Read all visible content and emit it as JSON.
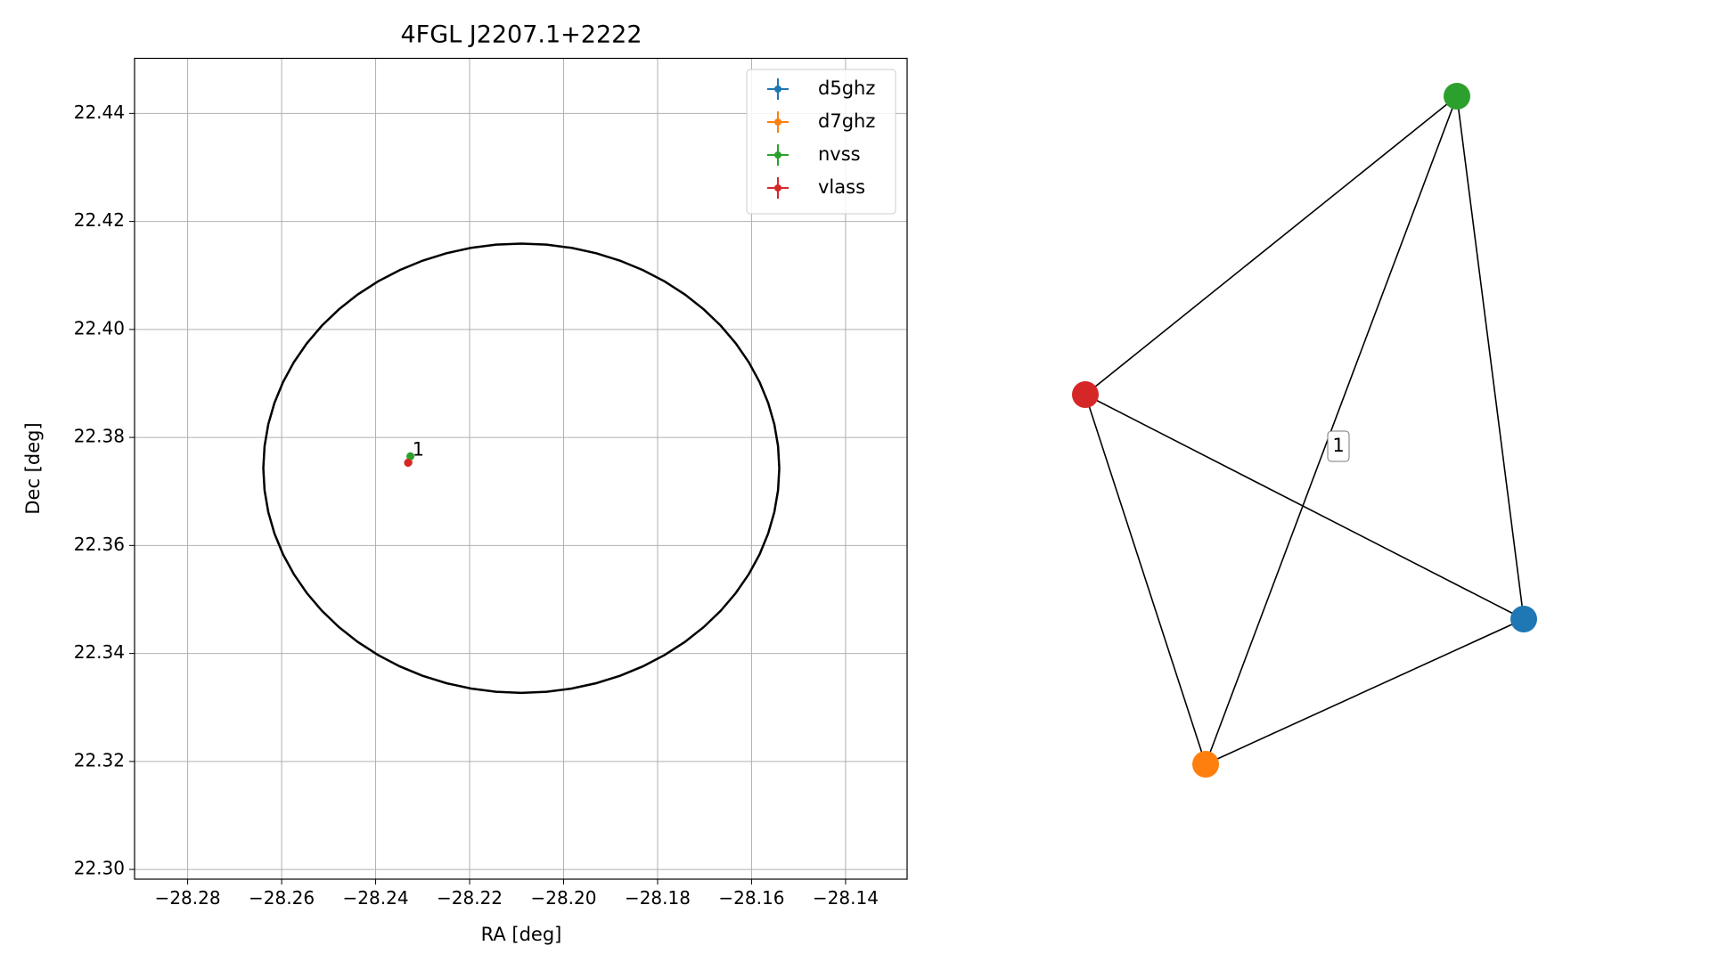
{
  "chart_data": {
    "type": "scatter",
    "title": "4FGL J2207.1+2222",
    "x_label": "RA [deg]",
    "y_label": "Dec [deg]",
    "xlim": [
      -28.2913,
      -28.1269
    ],
    "ylim": [
      22.2982,
      22.4502
    ],
    "xticks": [
      {
        "value": -28.28,
        "label": "−28.28"
      },
      {
        "value": -28.26,
        "label": "−28.26"
      },
      {
        "value": -28.24,
        "label": "−28.24"
      },
      {
        "value": -28.22,
        "label": "−28.22"
      },
      {
        "value": -28.2,
        "label": "−28.20"
      },
      {
        "value": -28.18,
        "label": "−28.18"
      },
      {
        "value": -28.16,
        "label": "−28.16"
      },
      {
        "value": -28.14,
        "label": "−28.14"
      }
    ],
    "yticks": [
      {
        "value": 22.3,
        "label": "22.30"
      },
      {
        "value": 22.32,
        "label": "22.32"
      },
      {
        "value": 22.34,
        "label": "22.34"
      },
      {
        "value": 22.36,
        "label": "22.36"
      },
      {
        "value": 22.38,
        "label": "22.38"
      },
      {
        "value": 22.4,
        "label": "22.40"
      },
      {
        "value": 22.42,
        "label": "22.42"
      },
      {
        "value": 22.44,
        "label": "22.44"
      }
    ],
    "grid": true,
    "legend": "upper right",
    "series": [
      {
        "name": "d5ghz",
        "color": "#1f77b4",
        "x": [
          -28.233
        ],
        "values": [
          22.3754
        ]
      },
      {
        "name": "d7ghz",
        "color": "#ff7f0e",
        "x": [
          -28.233
        ],
        "values": [
          22.3754
        ]
      },
      {
        "name": "nvss",
        "color": "#2ca02c",
        "x": [
          -28.2326
        ],
        "values": [
          22.3765
        ]
      },
      {
        "name": "vlass",
        "color": "#d62728",
        "x": [
          -28.2331
        ],
        "values": [
          22.3753
        ]
      }
    ],
    "annotations": [
      {
        "text": "1",
        "x": -28.2322,
        "y": 22.3776
      }
    ],
    "ellipse": {
      "center": [
        -28.209,
        22.3743
      ],
      "semi_axes": [
        0.0549,
        0.0416
      ],
      "color": "#000000"
    },
    "graph": {
      "edge_color": "#000000",
      "edges": [
        {
          "source": 3,
          "target": 2
        },
        {
          "source": 3,
          "target": 0
        },
        {
          "source": 3,
          "target": 1
        },
        {
          "source": 1,
          "target": 0
        },
        {
          "source": 1,
          "target": 2,
          "label": "1"
        },
        {
          "source": 2,
          "target": 0
        }
      ]
    }
  }
}
